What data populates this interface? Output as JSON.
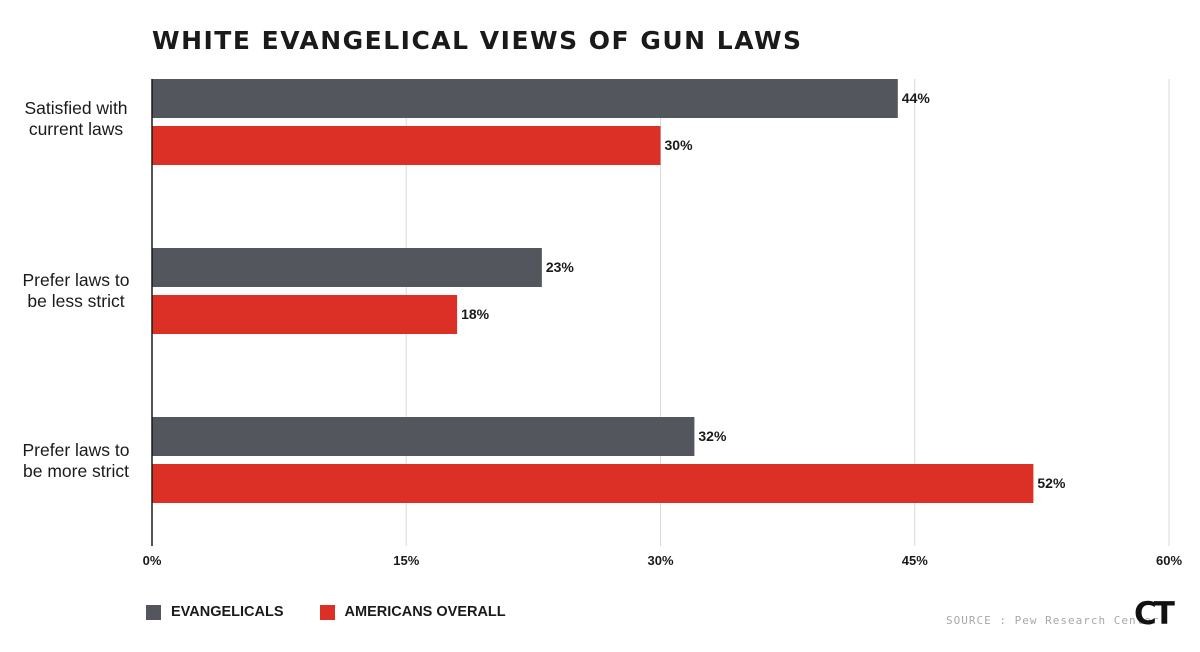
{
  "chart_data": {
    "type": "bar",
    "orientation": "horizontal",
    "title": "WHITE EVANGELICAL VIEWS OF GUN LAWS",
    "categories": [
      [
        "Satisfied with",
        "current laws"
      ],
      [
        "Prefer laws to",
        "be less strict"
      ],
      [
        "Prefer laws to",
        "be more strict"
      ]
    ],
    "series": [
      {
        "name": "EVANGELICALS",
        "color": "#53565d",
        "values": [
          44,
          23,
          32
        ]
      },
      {
        "name": "AMERICANS OVERALL",
        "color": "#dc3027",
        "values": [
          30,
          18,
          52
        ]
      }
    ],
    "value_labels": [
      [
        "44%",
        "23%",
        "32%"
      ],
      [
        "30%",
        "18%",
        "52%"
      ]
    ],
    "xlim": [
      0,
      60
    ],
    "xticks": [
      0,
      15,
      30,
      45,
      60
    ],
    "xtick_labels": [
      "0%",
      "15%",
      "30%",
      "45%",
      "60%"
    ],
    "grid": true,
    "legend_position": "bottom-left"
  },
  "source": "SOURCE : Pew Research Center",
  "logo": "CT"
}
